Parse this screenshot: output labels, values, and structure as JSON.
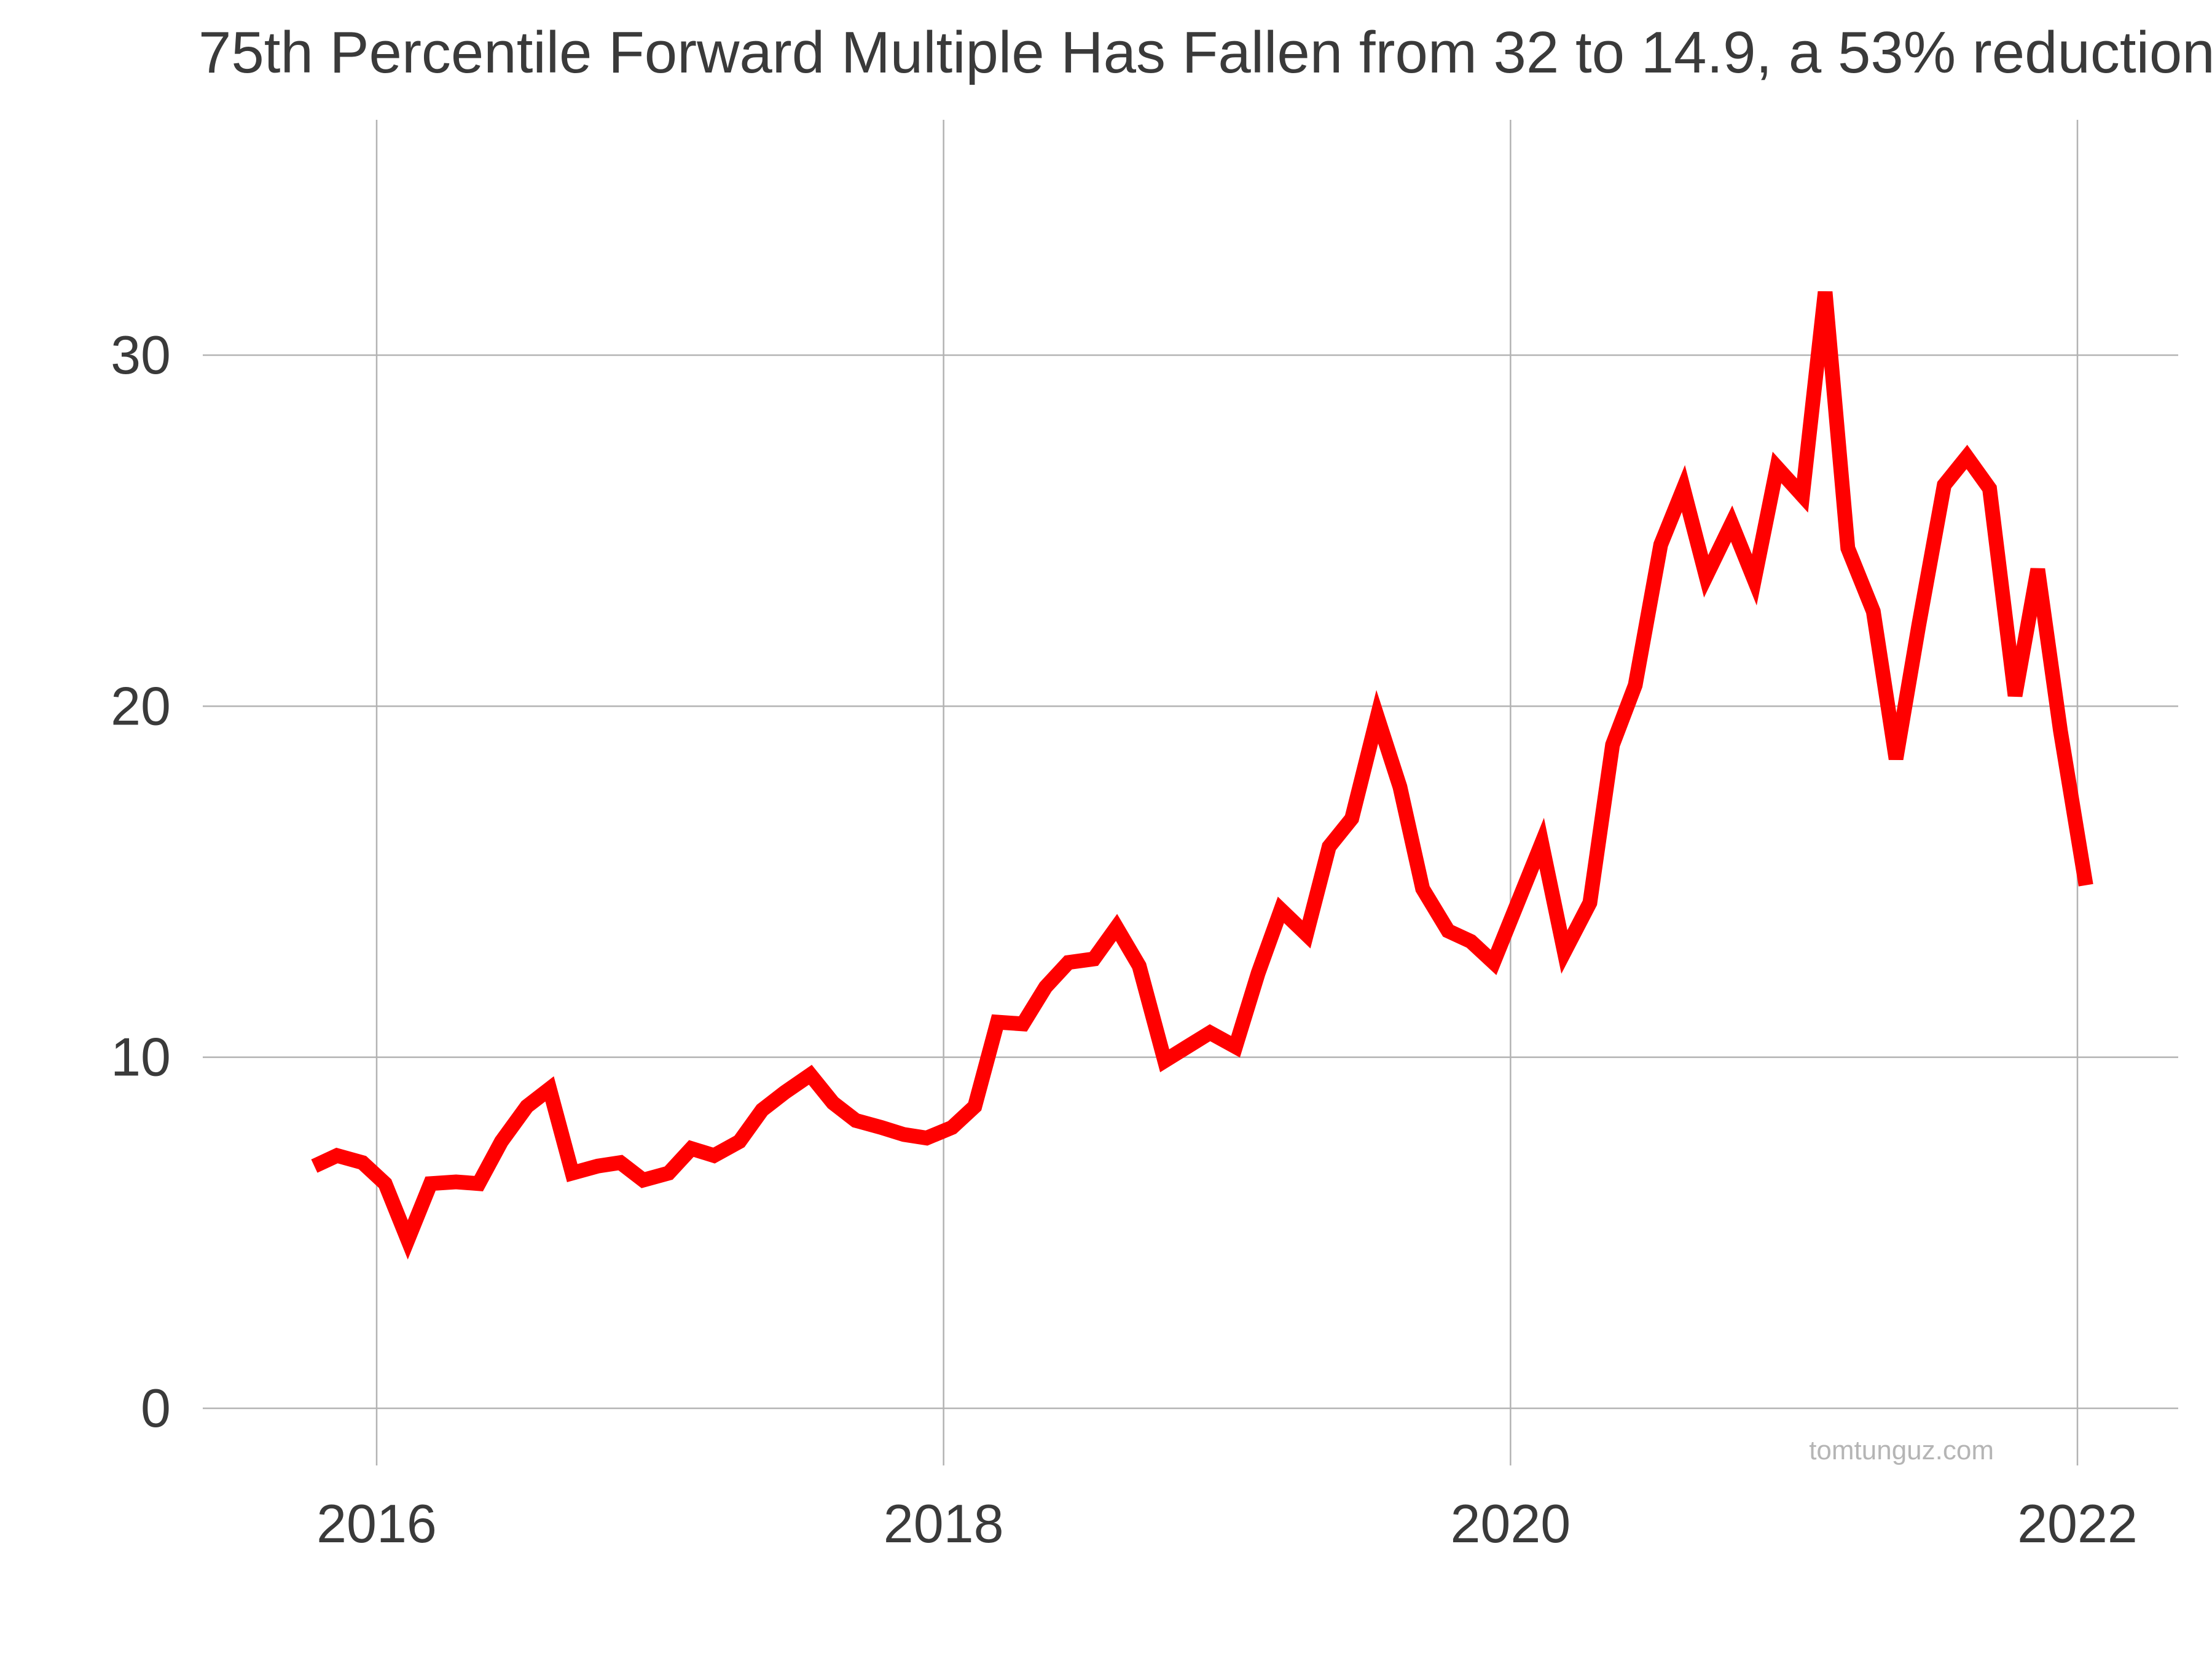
{
  "chart_data": {
    "type": "line",
    "title": "75th Percentile Forward Multiple Has Fallen from 32 to 14.9, a 53% reduction",
    "xlabel": "",
    "ylabel": "",
    "x_ticks": [
      {
        "label": "2016",
        "value": 2016
      },
      {
        "label": "2018",
        "value": 2018
      },
      {
        "label": "2020",
        "value": 2020
      },
      {
        "label": "2022",
        "value": 2022
      }
    ],
    "y_ticks": [
      {
        "label": "0",
        "value": 0
      },
      {
        "label": "10",
        "value": 10
      },
      {
        "label": "20",
        "value": 20
      },
      {
        "label": "30",
        "value": 30
      }
    ],
    "xlim": [
      2015.38,
      2022.38
    ],
    "ylim": [
      -1.5,
      36.7
    ],
    "grid": true,
    "legend": "none",
    "credit": "tomtunguz.com",
    "line_color": "#ff0000",
    "series": [
      {
        "x": [
          2015.78,
          2015.86,
          2015.95,
          2016.03,
          2016.11,
          2016.19,
          2016.28,
          2016.36,
          2016.44,
          2016.53,
          2016.61,
          2016.69,
          2016.78,
          2016.86,
          2016.94,
          2017.03,
          2017.11,
          2017.19,
          2017.28,
          2017.36,
          2017.44,
          2017.53,
          2017.61,
          2017.69,
          2017.78,
          2017.86,
          2017.94,
          2018.03,
          2018.11,
          2018.19,
          2018.28,
          2018.36,
          2018.44,
          2018.53,
          2018.61,
          2018.69,
          2018.78,
          2018.86,
          2018.94,
          2019.03,
          2019.11,
          2019.19,
          2019.28,
          2019.36,
          2019.44,
          2019.53,
          2019.61,
          2019.69,
          2019.78,
          2019.86,
          2019.94,
          2020.03,
          2020.11,
          2020.19,
          2020.28,
          2020.36,
          2020.44,
          2020.53,
          2020.61,
          2020.69,
          2020.78,
          2020.86,
          2020.94,
          2021.03,
          2021.11,
          2021.19,
          2021.28,
          2021.36,
          2021.44,
          2021.53,
          2021.61,
          2021.69,
          2021.78,
          2021.86,
          2021.94,
          2022.03
        ],
        "values": [
          6.9,
          7.2,
          7.0,
          6.4,
          4.8,
          6.4,
          6.45,
          6.4,
          7.6,
          8.6,
          9.1,
          6.7,
          6.9,
          7.0,
          6.5,
          6.7,
          7.4,
          7.2,
          7.6,
          8.5,
          9.0,
          9.5,
          8.7,
          8.2,
          8.0,
          7.8,
          7.7,
          8.0,
          8.6,
          11.0,
          10.95,
          12.0,
          12.7,
          12.8,
          13.7,
          12.6,
          9.9,
          10.3,
          10.7,
          10.3,
          12.4,
          14.2,
          13.5,
          16.0,
          16.8,
          19.7,
          17.7,
          14.8,
          13.6,
          13.3,
          12.7,
          14.5,
          16.1,
          13.0,
          14.4,
          18.9,
          20.6,
          24.6,
          26.2,
          23.7,
          25.2,
          23.6,
          26.8,
          26.0,
          31.8,
          24.5,
          22.7,
          18.5,
          22.3,
          26.3,
          27.1,
          26.2,
          20.3,
          23.9,
          19.3,
          14.9
        ]
      }
    ]
  }
}
